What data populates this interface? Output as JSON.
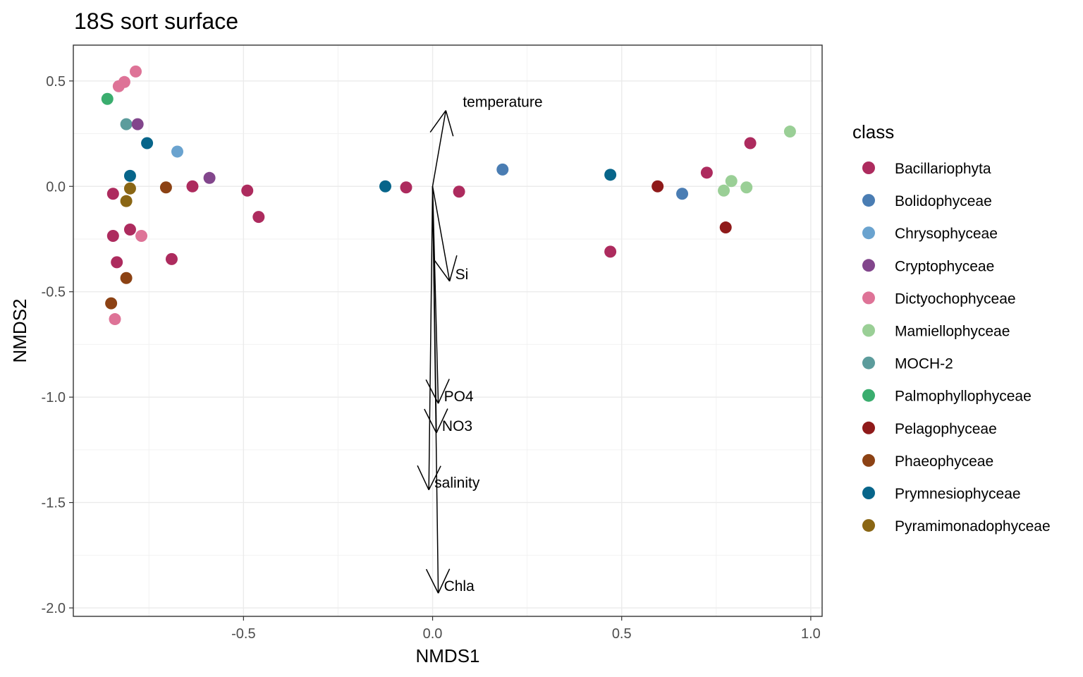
{
  "chart_data": {
    "type": "scatter",
    "title": "18S sort surface",
    "xlabel": "NMDS1",
    "ylabel": "NMDS2",
    "xlim": [
      -0.95,
      1.03
    ],
    "ylim": [
      -2.04,
      0.67
    ],
    "x_ticks": [
      -0.5,
      0.0,
      0.5,
      1.0
    ],
    "x_tick_labels": [
      "-0.5",
      "0.0",
      "0.5",
      "1.0"
    ],
    "y_ticks": [
      0.5,
      0.0,
      -0.5,
      -1.0,
      -1.5,
      -2.0
    ],
    "y_tick_labels": [
      "0.5",
      "0.0",
      "-0.5",
      "-1.0",
      "-1.5",
      "-2.0"
    ],
    "grid": true,
    "legend": {
      "title": "class",
      "position": "right",
      "items": [
        {
          "label": "Bacillariophyta",
          "color": "#AD2B5E"
        },
        {
          "label": "Bolidophyceae",
          "color": "#4A7DB3"
        },
        {
          "label": "Chrysophyceae",
          "color": "#6AA3CF"
        },
        {
          "label": "Cryptophyceae",
          "color": "#82468C"
        },
        {
          "label": "Dictyochophyceae",
          "color": "#DE7397"
        },
        {
          "label": "Mamiellophyceae",
          "color": "#9ACF96"
        },
        {
          "label": "MOCH-2",
          "color": "#5C9C9C"
        },
        {
          "label": "Palmophyllophyceae",
          "color": "#3AAD6E"
        },
        {
          "label": "Pelagophyceae",
          "color": "#8F1A1A"
        },
        {
          "label": "Phaeophyceae",
          "color": "#8C4214"
        },
        {
          "label": "Prymnesiophyceae",
          "color": "#07658A"
        },
        {
          "label": "Pyramimonadophyceae",
          "color": "#8A6614"
        }
      ]
    },
    "points": [
      {
        "x": -0.86,
        "y": 0.415,
        "class": "Palmophyllophyceae"
      },
      {
        "x": -0.83,
        "y": 0.475,
        "class": "Dictyochophyceae"
      },
      {
        "x": -0.815,
        "y": 0.495,
        "class": "Dictyochophyceae"
      },
      {
        "x": -0.785,
        "y": 0.545,
        "class": "Dictyochophyceae"
      },
      {
        "x": -0.81,
        "y": 0.295,
        "class": "MOCH-2"
      },
      {
        "x": -0.78,
        "y": 0.295,
        "class": "Cryptophyceae"
      },
      {
        "x": -0.755,
        "y": 0.205,
        "class": "Prymnesiophyceae"
      },
      {
        "x": -0.675,
        "y": 0.165,
        "class": "Chrysophyceae"
      },
      {
        "x": -0.8,
        "y": 0.05,
        "class": "Prymnesiophyceae"
      },
      {
        "x": -0.59,
        "y": 0.04,
        "class": "Cryptophyceae"
      },
      {
        "x": -0.845,
        "y": -0.035,
        "class": "Bacillariophyta"
      },
      {
        "x": -0.8,
        "y": -0.01,
        "class": "Pyramimonadophyceae"
      },
      {
        "x": -0.705,
        "y": -0.005,
        "class": "Phaeophyceae"
      },
      {
        "x": -0.635,
        "y": 0.0,
        "class": "Bacillariophyta"
      },
      {
        "x": -0.49,
        "y": -0.02,
        "class": "Bacillariophyta"
      },
      {
        "x": -0.46,
        "y": -0.145,
        "class": "Bacillariophyta"
      },
      {
        "x": -0.81,
        "y": -0.07,
        "class": "Pyramimonadophyceae"
      },
      {
        "x": -0.845,
        "y": -0.235,
        "class": "Bacillariophyta"
      },
      {
        "x": -0.8,
        "y": -0.205,
        "class": "Bacillariophyta"
      },
      {
        "x": -0.77,
        "y": -0.235,
        "class": "Dictyochophyceae"
      },
      {
        "x": -0.69,
        "y": -0.345,
        "class": "Bacillariophyta"
      },
      {
        "x": -0.835,
        "y": -0.36,
        "class": "Bacillariophyta"
      },
      {
        "x": -0.81,
        "y": -0.435,
        "class": "Phaeophyceae"
      },
      {
        "x": -0.85,
        "y": -0.555,
        "class": "Phaeophyceae"
      },
      {
        "x": -0.84,
        "y": -0.63,
        "class": "Dictyochophyceae"
      },
      {
        "x": -0.125,
        "y": 0.0,
        "class": "Prymnesiophyceae"
      },
      {
        "x": -0.07,
        "y": -0.005,
        "class": "Bacillariophyta"
      },
      {
        "x": 0.07,
        "y": -0.025,
        "class": "Bacillariophyta"
      },
      {
        "x": 0.185,
        "y": 0.08,
        "class": "Bolidophyceae"
      },
      {
        "x": 0.47,
        "y": 0.055,
        "class": "Prymnesiophyceae"
      },
      {
        "x": 0.47,
        "y": -0.31,
        "class": "Bacillariophyta"
      },
      {
        "x": 0.595,
        "y": 0.0,
        "class": "Pelagophyceae"
      },
      {
        "x": 0.66,
        "y": -0.035,
        "class": "Bolidophyceae"
      },
      {
        "x": 0.725,
        "y": 0.065,
        "class": "Bacillariophyta"
      },
      {
        "x": 0.77,
        "y": -0.02,
        "class": "Mamiellophyceae"
      },
      {
        "x": 0.79,
        "y": 0.025,
        "class": "Mamiellophyceae"
      },
      {
        "x": 0.83,
        "y": -0.005,
        "class": "Mamiellophyceae"
      },
      {
        "x": 0.775,
        "y": -0.195,
        "class": "Pelagophyceae"
      },
      {
        "x": 0.84,
        "y": 0.205,
        "class": "Bacillariophyta"
      },
      {
        "x": 0.945,
        "y": 0.26,
        "class": "Mamiellophyceae"
      }
    ],
    "vectors": [
      {
        "label": "temperature",
        "x": 0.035,
        "y": 0.36
      },
      {
        "label": "Si",
        "x": 0.045,
        "y": -0.45
      },
      {
        "label": "PO4",
        "x": 0.015,
        "y": -1.03
      },
      {
        "label": "NO3",
        "x": 0.01,
        "y": -1.17
      },
      {
        "label": "salinity",
        "x": -0.01,
        "y": -1.44
      },
      {
        "label": "Chla",
        "x": 0.015,
        "y": -1.93
      }
    ]
  }
}
